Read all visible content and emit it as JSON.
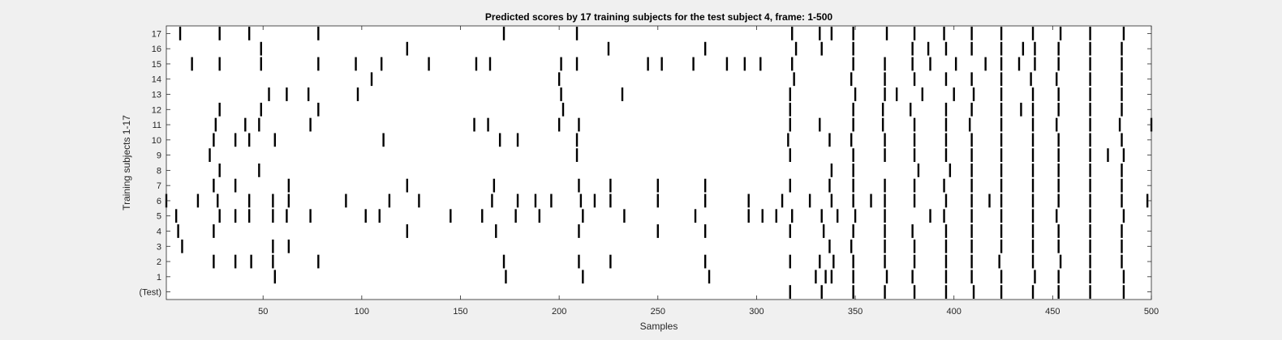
{
  "chart_data": {
    "type": "event raster",
    "title": "Predicted scores by 17 training subjects for the test subject 4, frame: 1-500",
    "xlabel": "Samples",
    "ylabel": "Training subjects 1-17",
    "xlim": [
      1,
      500
    ],
    "xticks": [
      50,
      100,
      150,
      200,
      250,
      300,
      350,
      400,
      450,
      500
    ],
    "yticks": [
      "(Test)",
      "1",
      "2",
      "3",
      "4",
      "5",
      "6",
      "7",
      "8",
      "9",
      "10",
      "11",
      "12",
      "13",
      "14",
      "15",
      "16",
      "17"
    ],
    "grid": false,
    "legend": "none",
    "colors": {
      "background": "#f0f0f0",
      "axes": "#ffffff",
      "marks": "#000000"
    },
    "rows": [
      {
        "label": "(Test)",
        "events": [
          317,
          333,
          349,
          365,
          380,
          396,
          410,
          424,
          440,
          453,
          469,
          486
        ]
      },
      {
        "label": "1",
        "events": [
          56,
          173,
          212,
          276,
          330,
          335,
          338,
          349,
          366,
          379,
          396,
          409,
          424,
          441,
          453,
          469,
          486
        ]
      },
      {
        "label": "2",
        "events": [
          25,
          36,
          44,
          55,
          78,
          172,
          210,
          226,
          274,
          317,
          332,
          339,
          349,
          365,
          380,
          396,
          409,
          423,
          440,
          454,
          469,
          485
        ]
      },
      {
        "label": "3",
        "events": [
          9,
          55,
          63,
          337,
          348,
          365,
          380,
          396,
          409,
          424,
          440,
          453,
          469,
          485
        ]
      },
      {
        "label": "4",
        "events": [
          7,
          25,
          123,
          168,
          210,
          250,
          274,
          317,
          334,
          349,
          365,
          379,
          396,
          409,
          424,
          440,
          453,
          469,
          485
        ]
      },
      {
        "label": "5",
        "events": [
          6,
          28,
          36,
          43,
          55,
          62,
          74,
          102,
          109,
          145,
          161,
          178,
          190,
          212,
          233,
          269,
          296,
          303,
          310,
          318,
          333,
          341,
          350,
          365,
          388,
          395,
          409,
          424,
          440,
          452,
          469,
          486
        ]
      },
      {
        "label": "6",
        "events": [
          1,
          17,
          27,
          43,
          55,
          63,
          92,
          114,
          129,
          166,
          179,
          188,
          196,
          211,
          218,
          226,
          250,
          274,
          296,
          313,
          327,
          338,
          349,
          358,
          365,
          380,
          396,
          409,
          418,
          424,
          440,
          453,
          469,
          485,
          498
        ]
      },
      {
        "label": "7",
        "events": [
          25,
          36,
          63,
          123,
          167,
          210,
          226,
          250,
          274,
          317,
          337,
          349,
          365,
          380,
          395,
          409,
          424,
          440,
          453,
          469,
          485
        ]
      },
      {
        "label": "8",
        "events": [
          28,
          48,
          338,
          349,
          382,
          398,
          409,
          424,
          440,
          453,
          469,
          485
        ]
      },
      {
        "label": "9",
        "events": [
          23,
          209,
          317,
          349,
          365,
          380,
          396,
          409,
          424,
          440,
          453,
          469,
          478,
          486
        ]
      },
      {
        "label": "10",
        "events": [
          25,
          36,
          43,
          56,
          111,
          170,
          179,
          209,
          316,
          337,
          348,
          365,
          380,
          396,
          409,
          424,
          440,
          453,
          469,
          485
        ]
      },
      {
        "label": "11",
        "events": [
          26,
          41,
          48,
          74,
          157,
          164,
          200,
          210,
          317,
          332,
          349,
          364,
          380,
          396,
          408,
          424,
          440,
          452,
          469,
          484,
          500
        ]
      },
      {
        "label": "12",
        "events": [
          28,
          49,
          78,
          202,
          317,
          349,
          364,
          378,
          396,
          409,
          424,
          434,
          440,
          453,
          469,
          485
        ]
      },
      {
        "label": "13",
        "events": [
          53,
          62,
          73,
          98,
          201,
          232,
          317,
          350,
          365,
          371,
          384,
          400,
          410,
          424,
          440,
          453,
          469,
          485
        ]
      },
      {
        "label": "14",
        "events": [
          105,
          200,
          319,
          348,
          365,
          380,
          396,
          409,
          424,
          439,
          452,
          469,
          485
        ]
      },
      {
        "label": "15",
        "events": [
          14,
          28,
          49,
          78,
          97,
          110,
          134,
          158,
          165,
          201,
          209,
          245,
          252,
          268,
          285,
          294,
          302,
          318,
          349,
          365,
          379,
          388,
          401,
          416,
          424,
          433,
          441,
          453,
          469,
          485
        ]
      },
      {
        "label": "16",
        "events": [
          49,
          123,
          225,
          274,
          320,
          333,
          349,
          379,
          387,
          396,
          409,
          424,
          435,
          441,
          453,
          469,
          485
        ]
      },
      {
        "label": "17",
        "events": [
          8,
          28,
          43,
          78,
          172,
          209,
          318,
          332,
          338,
          349,
          366,
          380,
          395,
          409,
          424,
          440,
          454,
          469,
          486
        ]
      }
    ]
  }
}
